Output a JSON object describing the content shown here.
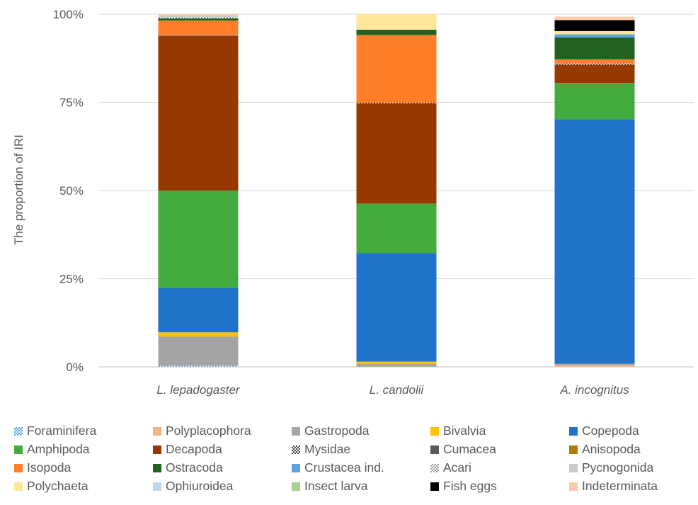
{
  "chart_data": {
    "type": "bar",
    "stacked": true,
    "title": "",
    "xlabel": "",
    "ylabel": "The proportion of IRI",
    "ylim": [
      0,
      100
    ],
    "yticks": [
      "0%",
      "25%",
      "50%",
      "75%",
      "100%"
    ],
    "grid": true,
    "legend_position": "bottom",
    "categories": [
      "L. lepadogaster",
      "L. candolii",
      "A. incognitus"
    ],
    "series": [
      {
        "name": "Foraminifera",
        "color": "#9DC3E6",
        "pattern": "dots",
        "values": [
          0.4,
          0,
          0
        ]
      },
      {
        "name": "Polyplacophora",
        "color": "#F4B183",
        "values": [
          0,
          0,
          0.6
        ]
      },
      {
        "name": "Gastropoda",
        "color": "#A5A5A5",
        "values": [
          8.2,
          0.8,
          0.3
        ]
      },
      {
        "name": "Bivalvia",
        "color": "#FFC000",
        "values": [
          1.2,
          0.7,
          0
        ]
      },
      {
        "name": "Copepoda",
        "color": "#1F73C9",
        "values": [
          12.6,
          30.8,
          69.3
        ]
      },
      {
        "name": "Amphipoda",
        "color": "#43AC3C",
        "values": [
          27.6,
          14.0,
          10.3
        ]
      },
      {
        "name": "Decapoda",
        "color": "#973800",
        "values": [
          43.9,
          28.4,
          5.2
        ]
      },
      {
        "name": "Mysidae",
        "color": "#404040",
        "pattern": "checker",
        "values": [
          0.2,
          0.2,
          0.4
        ]
      },
      {
        "name": "Cumacea",
        "color": "#595959",
        "values": [
          0,
          0,
          0
        ]
      },
      {
        "name": "Anisopoda",
        "color": "#AE7C00",
        "values": [
          0,
          0,
          0
        ]
      },
      {
        "name": "Isopoda",
        "color": "#FF7F2A",
        "values": [
          4.1,
          19.2,
          1.1
        ]
      },
      {
        "name": "Ostracoda",
        "color": "#236121",
        "values": [
          0.6,
          1.5,
          6.2
        ]
      },
      {
        "name": "Crustacea ind.",
        "color": "#5BA4DC",
        "values": [
          0,
          0,
          0.9
        ]
      },
      {
        "name": "Acari",
        "color": "#BFBFBF",
        "pattern": "checker",
        "values": [
          0.5,
          0,
          0
        ]
      },
      {
        "name": "Pycnogonida",
        "color": "#C9C9C9",
        "values": [
          0.3,
          0,
          0
        ]
      },
      {
        "name": "Polychaeta",
        "color": "#FFE699",
        "values": [
          0,
          4.4,
          0.9
        ]
      },
      {
        "name": "Ophiuroidea",
        "color": "#BDD7EE",
        "values": [
          0,
          0,
          0
        ]
      },
      {
        "name": "Insect larva",
        "color": "#A9D18E",
        "values": [
          0,
          0,
          0
        ]
      },
      {
        "name": "Fish eggs",
        "color": "#000000",
        "values": [
          0,
          0,
          3.1
        ]
      },
      {
        "name": "Indeterminata",
        "color": "#F8CBAD",
        "values": [
          0.4,
          0,
          1.0
        ]
      }
    ]
  }
}
